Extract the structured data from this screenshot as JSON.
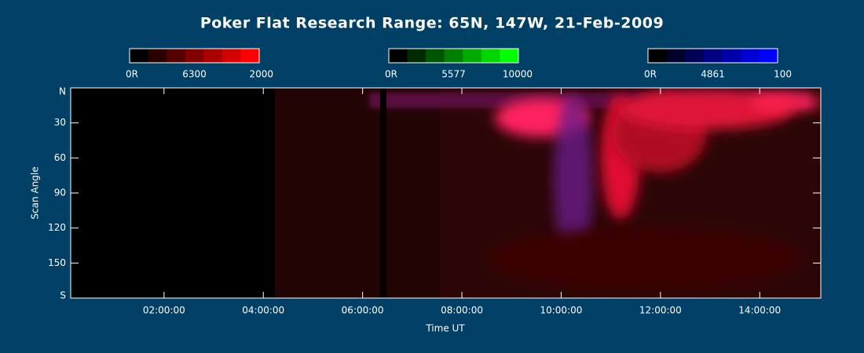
{
  "chart_data": {
    "type": "keogram",
    "title": "Poker Flat Research Range: 65N, 147W, 21-Feb-2009",
    "xlabel": "Time UT",
    "ylabel": "Scan Angle",
    "xlim": [
      0.12,
      15.23
    ],
    "xticks": [
      {
        "value": 2,
        "label": "02:00:00"
      },
      {
        "value": 4,
        "label": "04:00:00"
      },
      {
        "value": 6,
        "label": "06:00:00"
      },
      {
        "value": 8,
        "label": "08:00:00"
      },
      {
        "value": 10,
        "label": "10:00:00"
      },
      {
        "value": 12,
        "label": "12:00:00"
      },
      {
        "value": 14,
        "label": "14:00:00"
      }
    ],
    "ylim": [
      0,
      180
    ],
    "yticks": [
      {
        "value": 0,
        "label": "N"
      },
      30,
      60,
      90,
      120,
      150,
      {
        "value": 180,
        "label": "S"
      }
    ],
    "colorbars": [
      {
        "min_label": "0R",
        "wavelength": "6300",
        "max_label": "2000",
        "colors": [
          "#000000",
          "#2a0000",
          "#550000",
          "#800000",
          "#aa0000",
          "#d50000",
          "#ff0000"
        ]
      },
      {
        "min_label": "0R",
        "wavelength": "5577",
        "max_label": "10000",
        "colors": [
          "#000000",
          "#002a00",
          "#005500",
          "#008000",
          "#00aa00",
          "#00d500",
          "#00ff00"
        ]
      },
      {
        "min_label": "0R",
        "wavelength": "4861",
        "max_label": "100",
        "colors": [
          "#000000",
          "#00002a",
          "#000055",
          "#000080",
          "#0000aa",
          "#0000d5",
          "#0000ff"
        ]
      }
    ]
  }
}
